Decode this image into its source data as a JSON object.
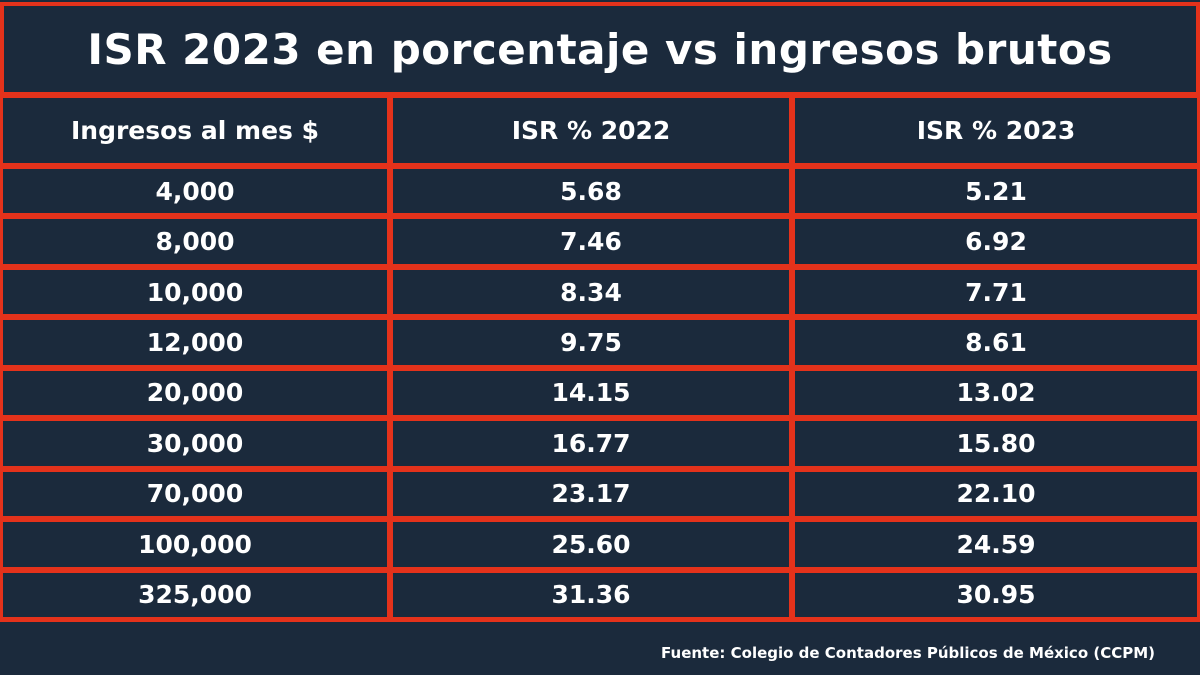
{
  "title": "ISR 2023 en porcentaje vs ingresos brutos",
  "table": {
    "header": [
      "Ingresos al mes $",
      "ISR % 2022",
      "ISR % 2023"
    ],
    "rows": [
      [
        "4,000",
        "5.68",
        "5.21"
      ],
      [
        "8,000",
        "7.46",
        "6.92"
      ],
      [
        "10,000",
        "8.34",
        "7.71"
      ],
      [
        "12,000",
        "9.75",
        "8.61"
      ],
      [
        "20,000",
        "14.15",
        "13.02"
      ],
      [
        "30,000",
        "16.77",
        "15.80"
      ],
      [
        "70,000",
        "23.17",
        "22.10"
      ],
      [
        "100,000",
        "25.60",
        "24.59"
      ],
      [
        "325,000",
        "31.36",
        "30.95"
      ]
    ]
  },
  "source": "Fuente: Colegio de Contadores Públicos de México (CCPM)"
}
